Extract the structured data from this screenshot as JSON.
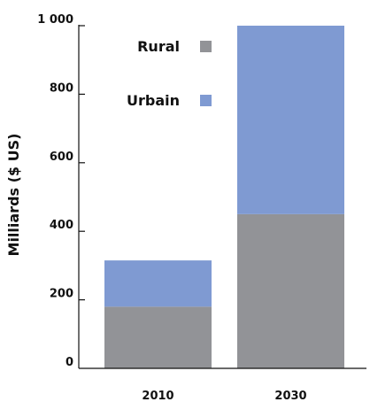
{
  "chart_data": {
    "type": "bar",
    "stacked": true,
    "title": "",
    "xlabel": "",
    "ylabel": "Milliards ($ US)",
    "ylim": [
      0,
      1000
    ],
    "yticks": [
      0,
      200,
      400,
      600,
      800,
      1000
    ],
    "ytick_labels": [
      "0",
      "200",
      "400",
      "600",
      "800",
      "1 000"
    ],
    "categories": [
      "2010",
      "2030"
    ],
    "series": [
      {
        "name": "Rural",
        "values": [
          180,
          450
        ],
        "color": "#929397"
      },
      {
        "name": "Urbain",
        "values": [
          135,
          550
        ],
        "color": "#7f9ad2"
      }
    ],
    "legend_position": "top-center",
    "grid": false
  }
}
